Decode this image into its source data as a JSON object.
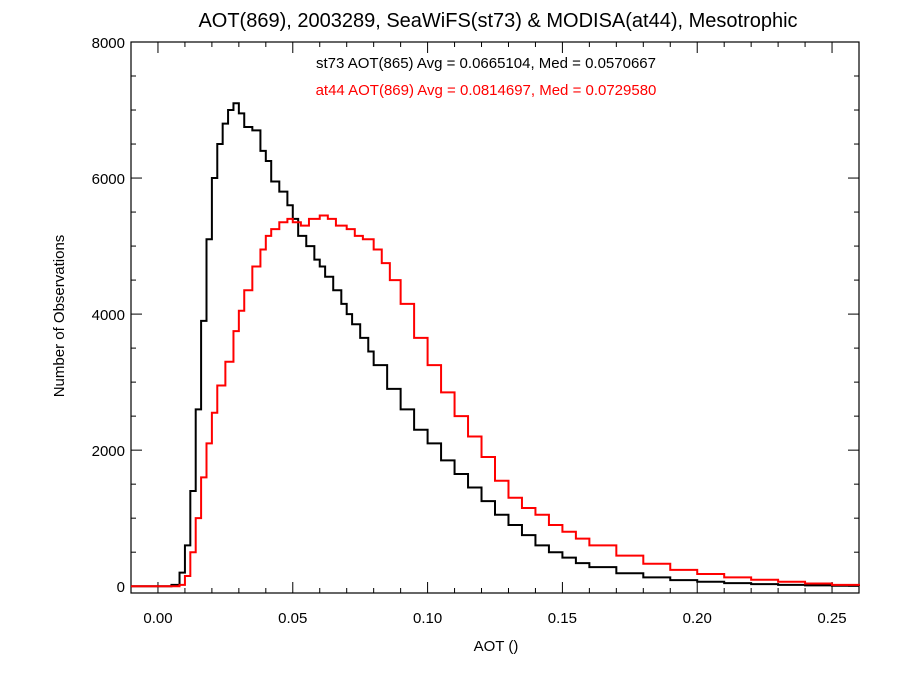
{
  "chart_data": {
    "type": "histogram-step",
    "title": "AOT(869), 2003289, SeaWiFS(st73) & MODISA(at44), Mesotrophic",
    "xlabel": "AOT ()",
    "ylabel": "Number of Observations",
    "xlim": [
      -0.01,
      0.26
    ],
    "ylim": [
      -100,
      8000
    ],
    "xticks": [
      0.0,
      0.05,
      0.1,
      0.15,
      0.2,
      0.25
    ],
    "xtick_labels": [
      "0.00",
      "0.05",
      "0.10",
      "0.15",
      "0.20",
      "0.25"
    ],
    "yticks": [
      0,
      2000,
      4000,
      6000,
      8000
    ],
    "ytick_labels": [
      "0",
      "2000",
      "4000",
      "6000",
      "8000"
    ],
    "grid": false,
    "annotations": [
      {
        "text": "st73 AOT(865) Avg = 0.0665104, Med = 0.0570667",
        "color": "#000000"
      },
      {
        "text": "at44 AOT(869) Avg = 0.0814697, Med = 0.0729580",
        "color": "#ff0000"
      }
    ],
    "series": [
      {
        "color": "#000000",
        "x": [
          -0.01,
          0.005,
          0.008,
          0.01,
          0.012,
          0.014,
          0.016,
          0.018,
          0.02,
          0.022,
          0.024,
          0.026,
          0.028,
          0.03,
          0.032,
          0.035,
          0.038,
          0.04,
          0.042,
          0.045,
          0.048,
          0.05,
          0.052,
          0.055,
          0.058,
          0.06,
          0.062,
          0.065,
          0.068,
          0.07,
          0.072,
          0.075,
          0.078,
          0.08,
          0.085,
          0.09,
          0.095,
          0.1,
          0.105,
          0.11,
          0.115,
          0.12,
          0.125,
          0.13,
          0.135,
          0.14,
          0.145,
          0.15,
          0.155,
          0.16,
          0.17,
          0.18,
          0.19,
          0.2,
          0.21,
          0.22,
          0.23,
          0.24,
          0.25,
          0.26
        ],
        "y": [
          0,
          20,
          200,
          600,
          1400,
          2600,
          3900,
          5100,
          6000,
          6500,
          6800,
          7000,
          7100,
          6950,
          6750,
          6700,
          6400,
          6250,
          5950,
          5800,
          5600,
          5400,
          5150,
          5000,
          4800,
          4700,
          4550,
          4350,
          4150,
          4000,
          3850,
          3650,
          3450,
          3250,
          2900,
          2600,
          2300,
          2100,
          1850,
          1650,
          1450,
          1250,
          1050,
          900,
          750,
          600,
          500,
          420,
          340,
          280,
          190,
          130,
          90,
          65,
          45,
          30,
          20,
          12,
          6,
          2
        ]
      },
      {
        "color": "#ff0000",
        "x": [
          -0.01,
          0.008,
          0.01,
          0.012,
          0.014,
          0.016,
          0.018,
          0.02,
          0.022,
          0.025,
          0.028,
          0.03,
          0.032,
          0.035,
          0.038,
          0.04,
          0.042,
          0.045,
          0.048,
          0.05,
          0.053,
          0.056,
          0.06,
          0.063,
          0.066,
          0.07,
          0.073,
          0.076,
          0.08,
          0.083,
          0.086,
          0.09,
          0.095,
          0.1,
          0.105,
          0.11,
          0.115,
          0.12,
          0.125,
          0.13,
          0.135,
          0.14,
          0.145,
          0.15,
          0.155,
          0.16,
          0.17,
          0.18,
          0.19,
          0.2,
          0.21,
          0.22,
          0.23,
          0.24,
          0.25,
          0.26
        ],
        "y": [
          0,
          20,
          150,
          500,
          1000,
          1600,
          2100,
          2550,
          2950,
          3300,
          3750,
          4050,
          4350,
          4700,
          4950,
          5150,
          5250,
          5350,
          5400,
          5350,
          5300,
          5400,
          5450,
          5400,
          5300,
          5250,
          5150,
          5100,
          4950,
          4750,
          4500,
          4150,
          3650,
          3250,
          2850,
          2500,
          2200,
          1900,
          1550,
          1300,
          1150,
          1050,
          900,
          800,
          700,
          600,
          450,
          330,
          240,
          180,
          130,
          95,
          65,
          40,
          20,
          8
        ]
      }
    ]
  }
}
